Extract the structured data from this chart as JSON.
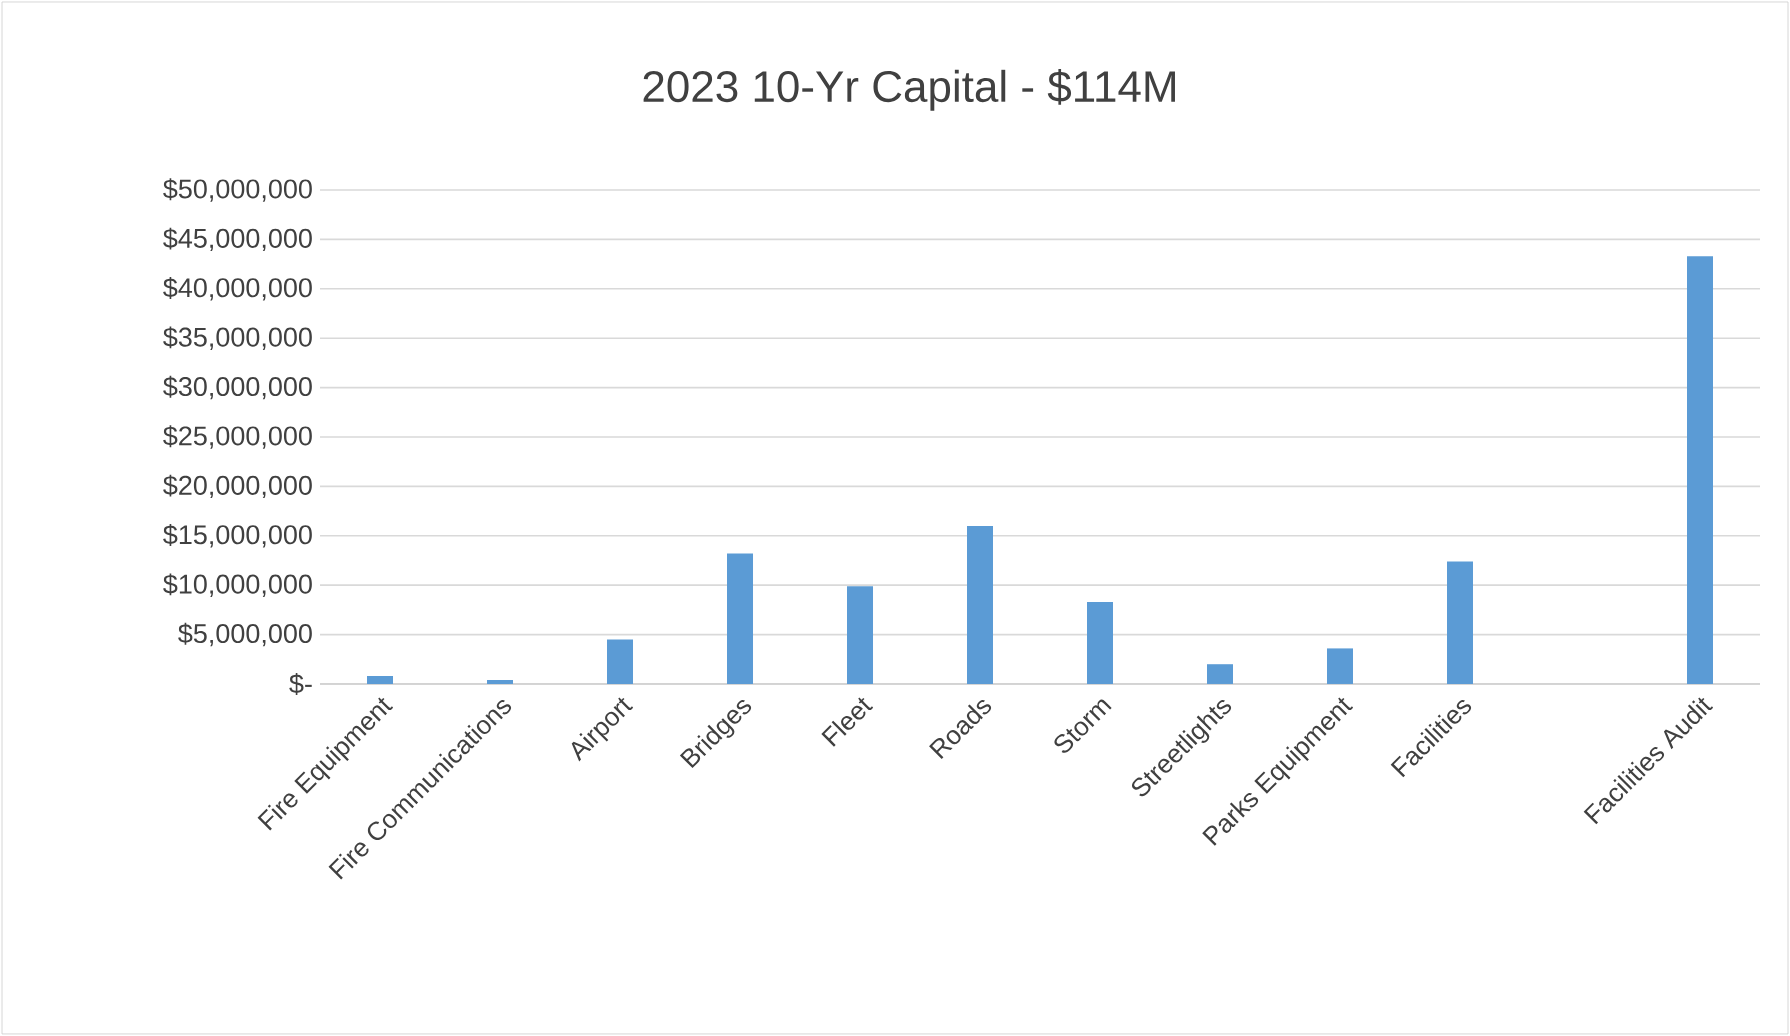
{
  "chart_data": {
    "type": "bar",
    "title": "2023 10-Yr Capital - $114M",
    "categories": [
      "Fire Equipment",
      "Fire Communications",
      "Airport",
      "Bridges",
      "Fleet",
      "Roads",
      "Storm",
      "Streetlights",
      "Parks Equipment",
      "Facilities",
      null,
      "Facilities Audit"
    ],
    "values": [
      800000,
      400000,
      4500000,
      13200000,
      9900000,
      16000000,
      8300000,
      2000000,
      3600000,
      12400000,
      null,
      43300000
    ],
    "color": "#5b9bd5",
    "ylim": [
      0,
      50000000
    ],
    "yticks": [
      {
        "value": 0,
        "label": "$-"
      },
      {
        "value": 5000000,
        "label": "$5,000,000"
      },
      {
        "value": 10000000,
        "label": "$10,000,000"
      },
      {
        "value": 15000000,
        "label": "$15,000,000"
      },
      {
        "value": 20000000,
        "label": "$20,000,000"
      },
      {
        "value": 25000000,
        "label": "$25,000,000"
      },
      {
        "value": 30000000,
        "label": "$30,000,000"
      },
      {
        "value": 35000000,
        "label": "$35,000,000"
      },
      {
        "value": 40000000,
        "label": "$40,000,000"
      },
      {
        "value": 45000000,
        "label": "$45,000,000"
      },
      {
        "value": 50000000,
        "label": "$50,000,000"
      }
    ],
    "grid": "y"
  }
}
